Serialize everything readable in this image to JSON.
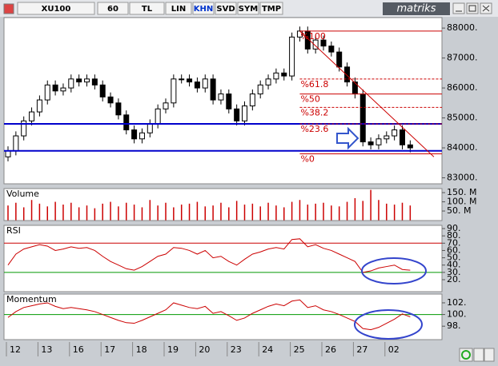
{
  "toolbar": {
    "items": [
      "XU100",
      "60",
      "TL",
      "LIN",
      "KHN",
      "SVD",
      "SYM",
      "TMP"
    ],
    "logo": "matriks"
  },
  "chart_data": [
    {
      "type": "candlestick",
      "categories": [
        "12",
        null,
        null,
        null,
        "13",
        null,
        null,
        null,
        "16",
        null,
        null,
        null,
        "17",
        null,
        null,
        null,
        "18",
        null,
        null,
        null,
        "19",
        null,
        null,
        null,
        "20",
        null,
        null,
        null,
        "23",
        null,
        null,
        null,
        "24",
        null,
        null,
        null,
        "25",
        null,
        null,
        null,
        "26",
        null,
        null,
        null,
        "27",
        null,
        null,
        null,
        "02",
        null,
        null,
        null
      ],
      "series": [
        {
          "color": "#000000",
          "open": [
            83700,
            83900,
            84400,
            84900,
            85200,
            85600,
            86100,
            85900,
            86000,
            86300,
            86200,
            86300,
            86100,
            85700,
            85500,
            85100,
            84600,
            84300,
            84500,
            84800,
            85300,
            85500,
            86300,
            86300,
            86200,
            86000,
            86300,
            85600,
            85800,
            85300,
            84900,
            85400,
            85800,
            86100,
            86300,
            86500,
            86400,
            87700,
            87900,
            87300,
            87600,
            87400,
            87200,
            86700,
            86200,
            85800,
            84200,
            84100,
            84300,
            84400,
            84600,
            84100
          ],
          "high": [
            84050,
            84550,
            85050,
            85350,
            85750,
            86250,
            86250,
            86150,
            86450,
            86450,
            86450,
            86450,
            86250,
            85850,
            85650,
            85250,
            84750,
            84650,
            84950,
            85450,
            85650,
            86450,
            86450,
            86450,
            86350,
            86450,
            86450,
            85950,
            85950,
            85450,
            85550,
            85950,
            86250,
            86450,
            86650,
            86650,
            87850,
            88050,
            88050,
            87750,
            87750,
            87550,
            87350,
            86850,
            86350,
            85950,
            84350,
            84450,
            84550,
            84750,
            84750,
            84250
          ],
          "low": [
            83550,
            83750,
            84250,
            84750,
            85050,
            85450,
            85750,
            85750,
            85850,
            86050,
            86050,
            85950,
            85550,
            85350,
            84950,
            84450,
            84150,
            84150,
            84350,
            84650,
            85150,
            85350,
            86150,
            86050,
            85850,
            85850,
            85450,
            85450,
            85150,
            84750,
            84750,
            85250,
            85650,
            85950,
            86150,
            86250,
            86250,
            87550,
            87150,
            87150,
            87250,
            87050,
            86550,
            86050,
            85650,
            84050,
            83950,
            83950,
            84150,
            84250,
            83950,
            83850
          ],
          "close": [
            83900,
            84400,
            84900,
            85200,
            85600,
            86100,
            85900,
            86000,
            86300,
            86200,
            86300,
            86100,
            85700,
            85500,
            85100,
            84600,
            84300,
            84500,
            84800,
            85300,
            85500,
            86300,
            86300,
            86200,
            86000,
            86300,
            85600,
            85800,
            85300,
            84900,
            85400,
            85800,
            86100,
            86300,
            86500,
            86400,
            87700,
            87900,
            87300,
            87600,
            87400,
            87200,
            86700,
            86200,
            85800,
            84200,
            84100,
            84300,
            84400,
            84600,
            84100,
            84000
          ]
        }
      ],
      "ylim": [
        82800,
        88350
      ],
      "yticks": [
        {
          "value": 88000,
          "label": "88000."
        },
        {
          "value": 87000,
          "label": "87000."
        },
        {
          "value": 86000,
          "label": "86000."
        },
        {
          "value": 85000,
          "label": "85000."
        },
        {
          "value": 84000,
          "label": "84000."
        },
        {
          "value": 83000,
          "label": "83000."
        }
      ],
      "hlines": [
        {
          "value": 84800,
          "color": "#0000cc"
        },
        {
          "value": 83900,
          "color": "#0000cc"
        }
      ],
      "fibonacci": {
        "color": "#cc0000",
        "levels": [
          {
            "label": "%100",
            "value": 87900,
            "dashed": false
          },
          {
            "label": "%61.8",
            "value": 86300,
            "dashed": true
          },
          {
            "label": "%50",
            "value": 85800,
            "dashed": false
          },
          {
            "label": "%38.2",
            "value": 85350,
            "dashed": true
          },
          {
            "label": "%23.6",
            "value": 84800,
            "dashed": true
          },
          {
            "label": "%0",
            "value": 83800,
            "dashed": false
          }
        ]
      },
      "trend_line": {
        "color": "#cc0000",
        "x": [
          37,
          54
        ],
        "y": [
          87900,
          83700
        ]
      }
    },
    {
      "type": "bar",
      "title": "Volume",
      "color": "#cc0000",
      "values": [
        80,
        95,
        70,
        110,
        90,
        75,
        100,
        85,
        95,
        70,
        80,
        65,
        90,
        100,
        75,
        95,
        85,
        70,
        110,
        80,
        95,
        70,
        85,
        90,
        100,
        75,
        80,
        95,
        70,
        105,
        85,
        90,
        75,
        95,
        80,
        70,
        100,
        110,
        85,
        90,
        95,
        80,
        75,
        100,
        120,
        105,
        165,
        110,
        90,
        85,
        95,
        80
      ],
      "ylim": [
        -2,
        172
      ],
      "yticks": [
        {
          "value": 150,
          "label": "150. M"
        },
        {
          "value": 100,
          "label": "100. M"
        },
        {
          "value": 50,
          "label": "50. M"
        }
      ]
    },
    {
      "type": "line",
      "title": "RSI",
      "color": "#cc0000",
      "values": [
        40,
        55,
        62,
        65,
        68,
        66,
        60,
        62,
        65,
        63,
        64,
        60,
        52,
        45,
        40,
        35,
        33,
        38,
        45,
        52,
        55,
        64,
        63,
        60,
        55,
        60,
        50,
        52,
        45,
        40,
        48,
        55,
        58,
        62,
        64,
        62,
        75,
        76,
        65,
        68,
        63,
        60,
        55,
        50,
        45,
        30,
        32,
        36,
        38,
        40,
        34,
        33
      ],
      "ylim": [
        3.6,
        94.4
      ],
      "yticks": [
        {
          "value": 90,
          "label": "90."
        },
        {
          "value": 80,
          "label": "80."
        },
        {
          "value": 70,
          "label": "70."
        },
        {
          "value": 60,
          "label": "60."
        },
        {
          "value": 50,
          "label": "50."
        },
        {
          "value": 40,
          "label": "40."
        },
        {
          "value": 30,
          "label": "30."
        },
        {
          "value": 20,
          "label": "20."
        }
      ],
      "ref_lines": [
        {
          "value": 70,
          "color": "#cc0000"
        },
        {
          "value": 30,
          "color": "#009900"
        }
      ]
    },
    {
      "type": "line",
      "title": "Momentum",
      "color": "#cc0000",
      "values": [
        99.5,
        100.5,
        101.2,
        101.5,
        101.8,
        102,
        101.4,
        101,
        101.2,
        101,
        100.8,
        100.5,
        100,
        99.5,
        99,
        98.6,
        98.5,
        99,
        99.6,
        100.2,
        100.8,
        102,
        101.6,
        101.2,
        101,
        101.4,
        100.2,
        100.5,
        99.8,
        99,
        99.4,
        100.2,
        100.8,
        101.4,
        101.8,
        101.5,
        102.3,
        102.5,
        101.2,
        101.5,
        100.8,
        100.5,
        100,
        99.4,
        98.8,
        97.6,
        97.4,
        97.8,
        98.5,
        99.2,
        100.1,
        99.6
      ],
      "ylim": [
        95.7,
        103.5
      ],
      "yticks": [
        {
          "value": 102,
          "label": "102."
        },
        {
          "value": 100,
          "label": "100."
        },
        {
          "value": 98,
          "label": "98."
        }
      ],
      "ref_lines": [
        {
          "value": 100,
          "color": "#009900"
        }
      ]
    }
  ]
}
